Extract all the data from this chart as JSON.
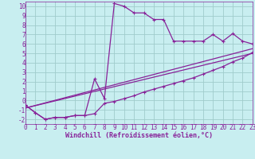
{
  "bg_color": "#c8eef0",
  "grid_color": "#a0cccc",
  "line_color": "#882299",
  "xlim": [
    0,
    23
  ],
  "ylim": [
    -2.5,
    10.5
  ],
  "yticks": [
    -2,
    -1,
    0,
    1,
    2,
    3,
    4,
    5,
    6,
    7,
    8,
    9,
    10
  ],
  "xticks": [
    0,
    1,
    2,
    3,
    4,
    5,
    6,
    7,
    8,
    9,
    10,
    11,
    12,
    13,
    14,
    15,
    16,
    17,
    18,
    19,
    20,
    21,
    22,
    23
  ],
  "xlabel": "Windchill (Refroidissement éolien,°C)",
  "curve1_x": [
    0,
    1,
    2,
    3,
    4,
    5,
    6,
    7,
    8,
    9,
    10,
    11,
    12,
    13,
    14,
    15,
    16,
    17,
    18,
    19,
    20,
    21,
    22,
    23
  ],
  "curve1_y": [
    -0.5,
    -1.3,
    -2.0,
    -1.8,
    -1.8,
    -1.6,
    -1.6,
    2.3,
    0.2,
    10.3,
    10.0,
    9.3,
    9.3,
    8.6,
    8.6,
    6.3,
    6.3,
    6.3,
    6.3,
    7.0,
    6.3,
    7.1,
    6.3,
    6.0
  ],
  "curve2_x": [
    0,
    1,
    2,
    3,
    4,
    5,
    6,
    7,
    8,
    9,
    10,
    11,
    12,
    13,
    14,
    15,
    16,
    17,
    18,
    19,
    20,
    21,
    22,
    23
  ],
  "curve2_y": [
    -0.5,
    -1.3,
    -2.0,
    -1.8,
    -1.8,
    -1.6,
    -1.6,
    -1.4,
    -0.3,
    -0.1,
    0.2,
    0.5,
    0.9,
    1.2,
    1.5,
    1.8,
    2.1,
    2.4,
    2.8,
    3.2,
    3.6,
    4.1,
    4.5,
    5.1
  ],
  "line3_x": [
    0,
    23
  ],
  "line3_y": [
    -0.8,
    5.5
  ],
  "line4_x": [
    0,
    23
  ],
  "line4_y": [
    -0.8,
    5.0
  ],
  "tick_fontsize": 5.5,
  "label_fontsize": 6.0
}
